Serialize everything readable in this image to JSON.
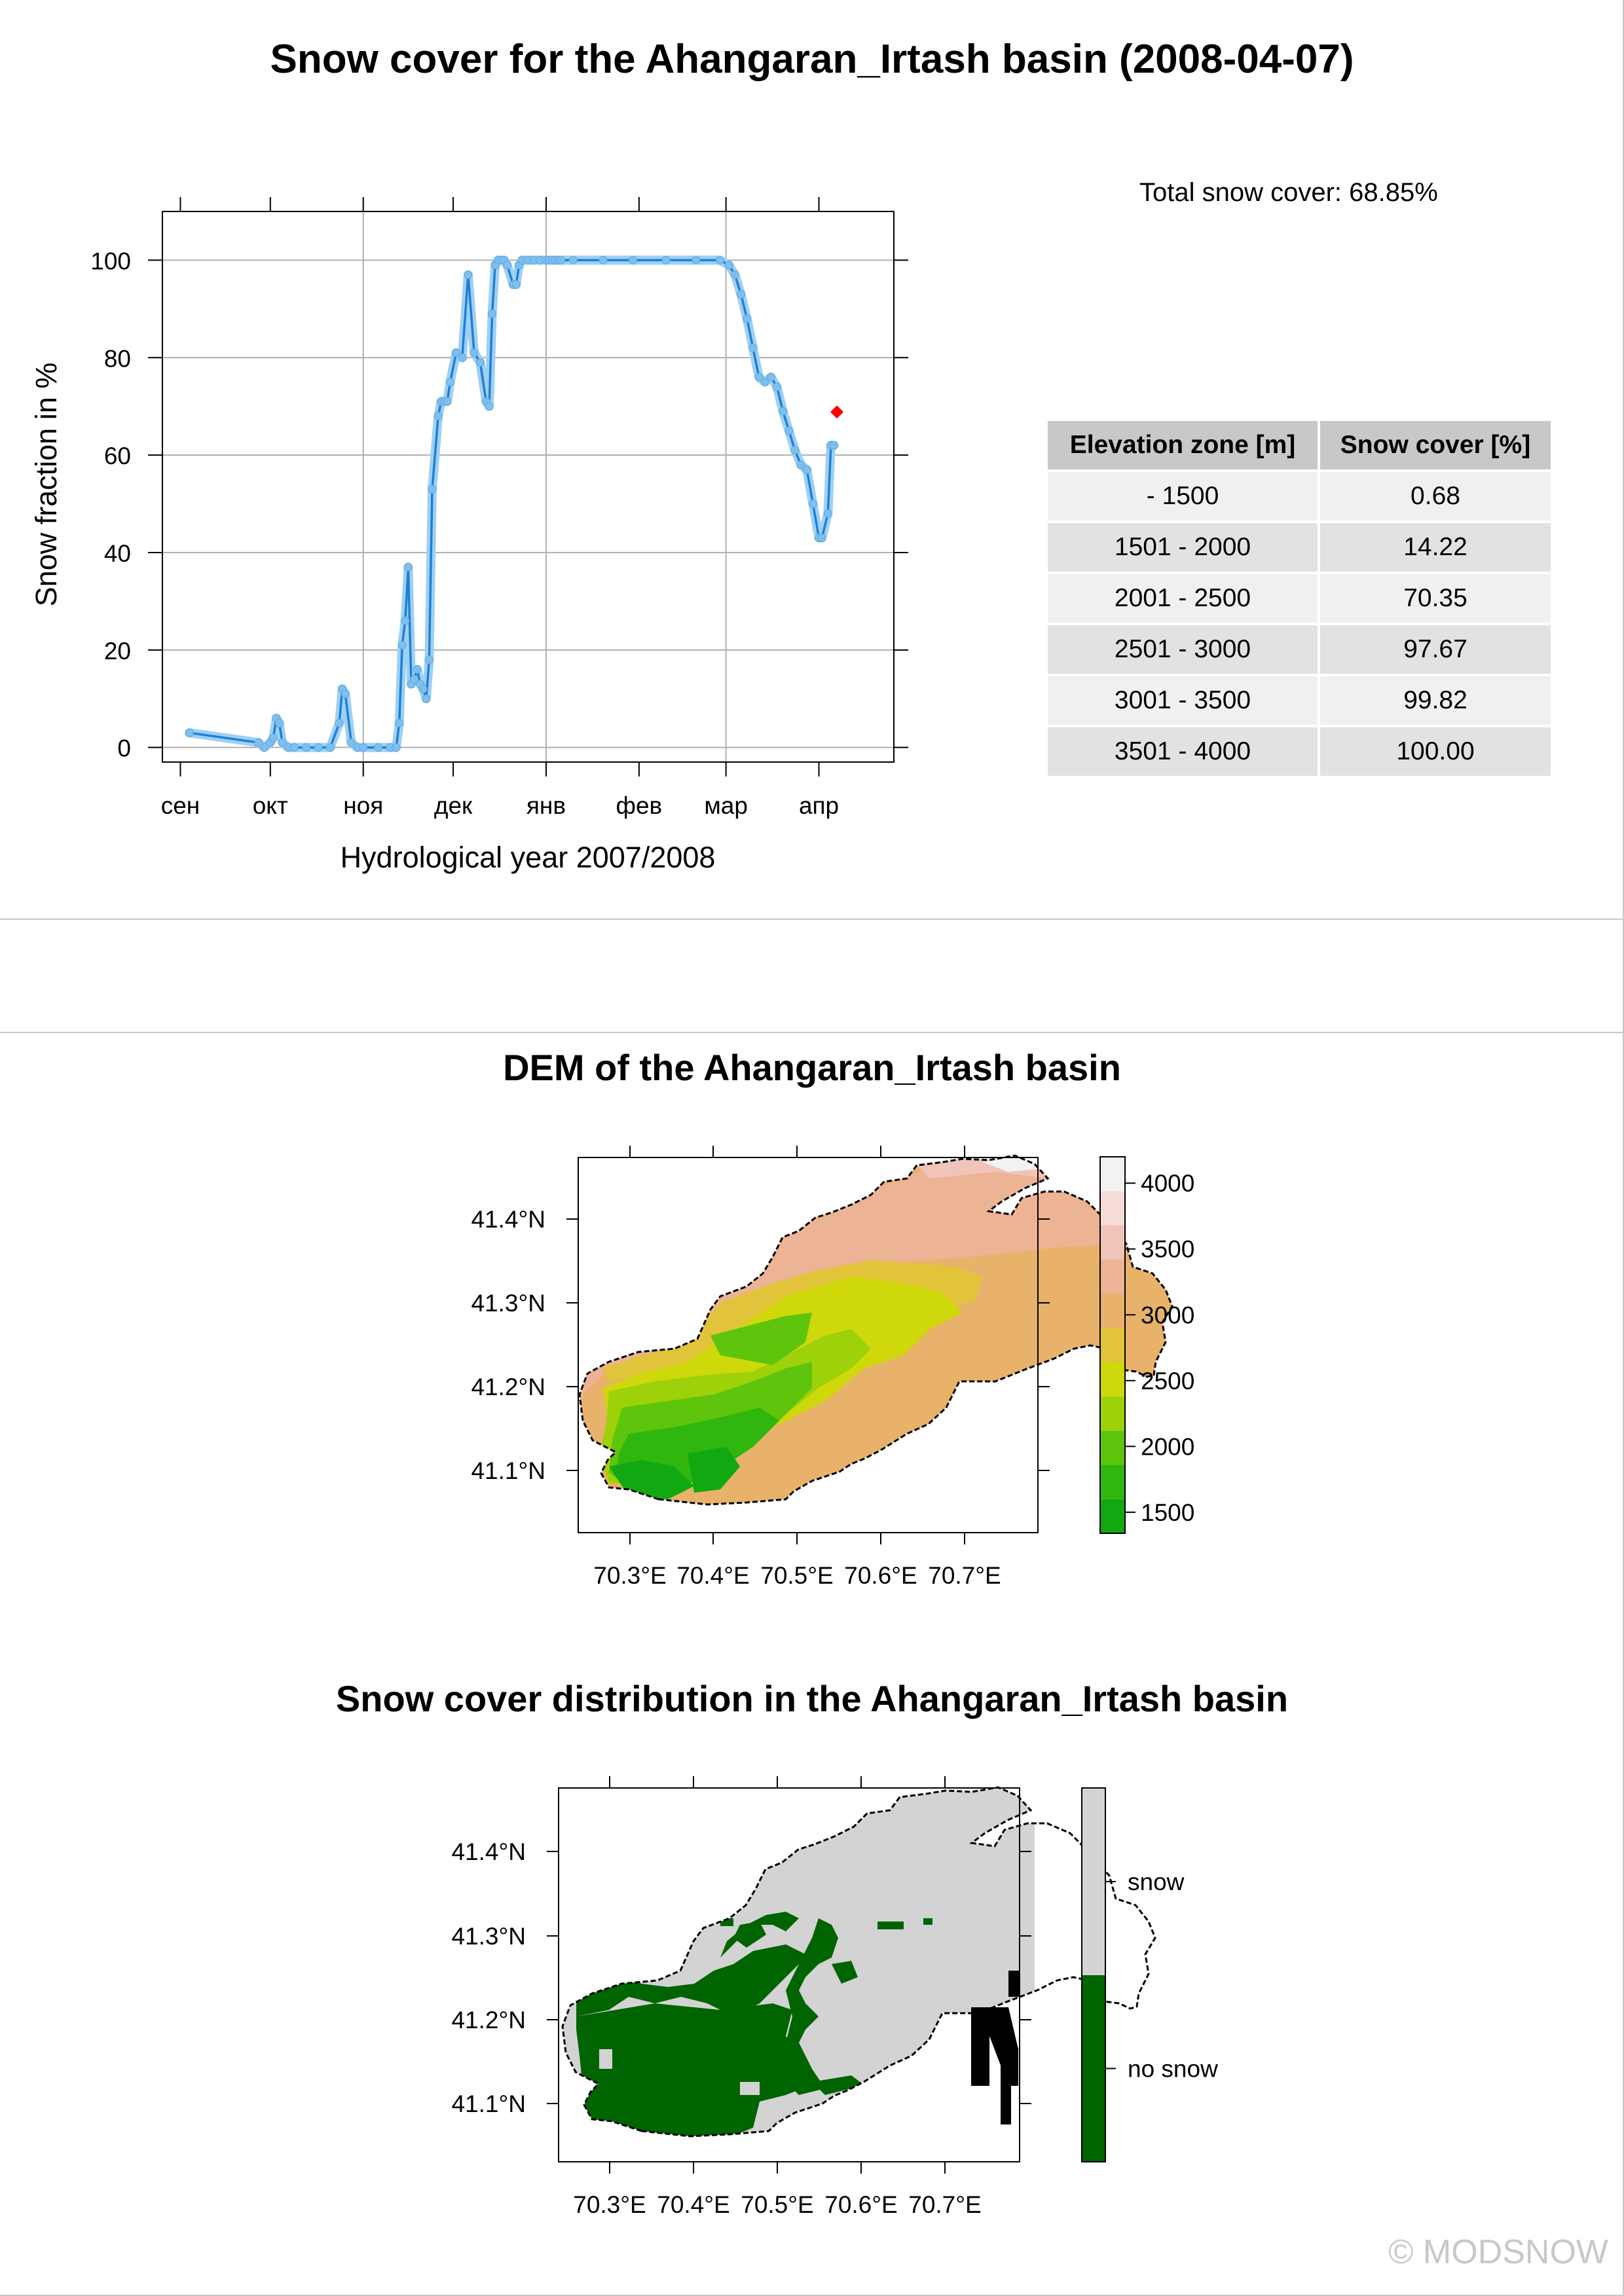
{
  "page": {
    "title": "Snow cover for the Ahangaran_Irtash basin (2008-04-07)",
    "total_snow_cover": "Total snow cover: 68.85%",
    "copyright": "© MODSNOW"
  },
  "elevation_table": {
    "headers": [
      "Elevation zone [m]",
      "Snow cover [%]"
    ],
    "rows": [
      [
        "- 1500",
        "0.68"
      ],
      [
        "1501 - 2000",
        "14.22"
      ],
      [
        "2001 - 2500",
        "70.35"
      ],
      [
        "2501 - 3000",
        "97.67"
      ],
      [
        "3001 - 3500",
        "99.82"
      ],
      [
        "3501 - 4000",
        "100.00"
      ]
    ]
  },
  "chart_data": [
    {
      "type": "line",
      "title": "",
      "xlabel": "Hydrological year 2007/2008",
      "ylabel": "Snow fraction in %",
      "x_tick_labels": [
        "сен",
        "окт",
        "ноя",
        "дек",
        "янв",
        "фев",
        "мар",
        "апр"
      ],
      "y_ticks": [
        0,
        20,
        40,
        60,
        80,
        100
      ],
      "ylim": [
        -3,
        110
      ],
      "grid": true,
      "colors": {
        "line": "#1f7fd8",
        "halo": "#9fd0f2",
        "point": "#7fbfee",
        "current": "#ff0000"
      },
      "series": [
        {
          "x": [
            "2007-09-04",
            "2007-09-27",
            "2007-09-29",
            "2007-10-01",
            "2007-10-02",
            "2007-10-03",
            "2007-10-04",
            "2007-10-05",
            "2007-10-07",
            "2007-10-09",
            "2007-10-13",
            "2007-10-17",
            "2007-10-21",
            "2007-10-24",
            "2007-10-25",
            "2007-10-26",
            "2007-10-28",
            "2007-10-30",
            "2007-11-01",
            "2007-11-06",
            "2007-11-10",
            "2007-11-12",
            "2007-11-13",
            "2007-11-14",
            "2007-11-15",
            "2007-11-16",
            "2007-11-17",
            "2007-11-18",
            "2007-11-19",
            "2007-11-20",
            "2007-11-21",
            "2007-11-22",
            "2007-11-23",
            "2007-11-24",
            "2007-11-26",
            "2007-11-27",
            "2007-11-28",
            "2007-11-29",
            "2007-11-30",
            "2007-12-02",
            "2007-12-04",
            "2007-12-06",
            "2007-12-08",
            "2007-12-10",
            "2007-12-12",
            "2007-12-13",
            "2007-12-14",
            "2007-12-15",
            "2007-12-16",
            "2007-12-17",
            "2007-12-18",
            "2007-12-19",
            "2007-12-21",
            "2007-12-22",
            "2007-12-23",
            "2007-12-24",
            "2007-12-26",
            "2007-12-28",
            "2007-12-30",
            "2008-01-01",
            "2008-01-02",
            "2008-01-03",
            "2008-01-04",
            "2008-01-05",
            "2008-01-06",
            "2008-01-10",
            "2008-01-20",
            "2008-01-30",
            "2008-02-10",
            "2008-02-20",
            "2008-02-28",
            "2008-03-02",
            "2008-03-04",
            "2008-03-06",
            "2008-03-08",
            "2008-03-10",
            "2008-03-12",
            "2008-03-14",
            "2008-03-16",
            "2008-03-18",
            "2008-03-20",
            "2008-03-22",
            "2008-03-24",
            "2008-03-26",
            "2008-03-28",
            "2008-03-30",
            "2008-04-01",
            "2008-04-02",
            "2008-04-04",
            "2008-04-05",
            "2008-04-06"
          ],
          "values": [
            3,
            1,
            0,
            1,
            2,
            6,
            5,
            1,
            0,
            0,
            0,
            0,
            0,
            5,
            12,
            11,
            1,
            0,
            0,
            0,
            0,
            0,
            5,
            21,
            26,
            37,
            13,
            14,
            16,
            13,
            12,
            10,
            18,
            53,
            68,
            71,
            71,
            71,
            75,
            81,
            80,
            97,
            81,
            79,
            71,
            70,
            89,
            99,
            100,
            100,
            100,
            99,
            95,
            95,
            99,
            100,
            100,
            100,
            100,
            100,
            100,
            100,
            100,
            100,
            100,
            100,
            100,
            100,
            100,
            100,
            100,
            99,
            97,
            93,
            88,
            82,
            76,
            75,
            76,
            74,
            69,
            65,
            61,
            58,
            57,
            50,
            43,
            43,
            48,
            62,
            62
          ]
        }
      ],
      "current_point": {
        "x": "2008-04-07",
        "y": 68.85
      }
    },
    {
      "type": "heatmap",
      "title": "DEM of the Ahangaran_Irtash basin",
      "x_tick_labels": [
        "70.3°E",
        "70.4°E",
        "70.5°E",
        "70.6°E",
        "70.7°E"
      ],
      "y_tick_labels": [
        "41.1°N",
        "41.2°N",
        "41.3°N",
        "41.4°N"
      ],
      "colorbar_labels": [
        "1500",
        "2000",
        "2500",
        "3000",
        "3500",
        "4000"
      ],
      "colorbar_colors": [
        "#12a812",
        "#2fb60f",
        "#5ec40c",
        "#9dd10a",
        "#cfd80a",
        "#e2c43a",
        "#e8b26a",
        "#ecb394",
        "#f1c4b9",
        "#f5dcd7",
        "#f2f2f2"
      ]
    },
    {
      "type": "heatmap",
      "title": "Snow cover distribution in the Ahangaran_Irtash basin",
      "x_tick_labels": [
        "70.3°E",
        "70.4°E",
        "70.5°E",
        "70.6°E",
        "70.7°E"
      ],
      "y_tick_labels": [
        "41.1°N",
        "41.2°N",
        "41.3°N",
        "41.4°N"
      ],
      "legend": [
        "snow",
        "no snow"
      ],
      "colors": {
        "snow": "#d3d3d3",
        "no_snow": "#006400"
      }
    }
  ]
}
